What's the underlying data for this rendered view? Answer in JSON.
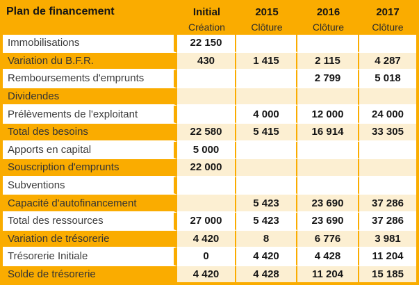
{
  "colors": {
    "accent_orange": "#FAAC00",
    "highlight_cream": "#FCEFD2",
    "row_separator_white": "#FFFFFF",
    "text_dark": "#161616"
  },
  "chart_data": {
    "type": "table",
    "title": "Plan de financement",
    "columns": [
      {
        "year": "Initial",
        "period": "Création"
      },
      {
        "year": "2015",
        "period": "Clôture"
      },
      {
        "year": "2016",
        "period": "Clôture"
      },
      {
        "year": "2017",
        "period": "Clôture"
      }
    ],
    "rows": [
      {
        "label": "Immobilisations",
        "values": [
          "22 150",
          "",
          "",
          ""
        ],
        "accent": false
      },
      {
        "label": "Variation du B.F.R.",
        "values": [
          "430",
          "1 415",
          "2 115",
          "4 287"
        ],
        "accent": true
      },
      {
        "label": "Remboursements d'emprunts",
        "values": [
          "",
          "",
          "2 799",
          "5 018"
        ],
        "accent": false
      },
      {
        "label": "Dividendes",
        "values": [
          "",
          "",
          "",
          ""
        ],
        "accent": true
      },
      {
        "label": "Prélèvements de l'exploitant",
        "values": [
          "",
          "4 000",
          "12 000",
          "24 000"
        ],
        "accent": false
      },
      {
        "label": "Total des besoins",
        "values": [
          "22 580",
          "5 415",
          "16 914",
          "33 305"
        ],
        "accent": true
      },
      {
        "label": "Apports en capital",
        "values": [
          "5 000",
          "",
          "",
          ""
        ],
        "accent": false
      },
      {
        "label": "Souscription d'emprunts",
        "values": [
          "22 000",
          "",
          "",
          ""
        ],
        "accent": true
      },
      {
        "label": "Subventions",
        "values": [
          "",
          "",
          "",
          ""
        ],
        "accent": false
      },
      {
        "label": "Capacité d'autofinancement",
        "values": [
          "",
          "5 423",
          "23 690",
          "37 286"
        ],
        "accent": true
      },
      {
        "label": "Total des ressources",
        "values": [
          "27 000",
          "5 423",
          "23 690",
          "37 286"
        ],
        "accent": false
      },
      {
        "label": "Variation de trésorerie",
        "values": [
          "4 420",
          "8",
          "6 776",
          "3 981"
        ],
        "accent": true
      },
      {
        "label": "Trésorerie Initiale",
        "values": [
          "0",
          "4 420",
          "4 428",
          "11 204"
        ],
        "accent": false
      },
      {
        "label": "Solde de trésorerie",
        "values": [
          "4 420",
          "4 428",
          "11 204",
          "15 185"
        ],
        "accent": true
      }
    ]
  }
}
